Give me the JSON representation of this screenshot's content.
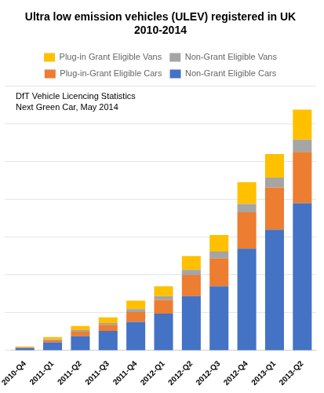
{
  "chart_data": {
    "type": "bar",
    "stacked": true,
    "title": "Ultra low emission vehicles (ULEV) registered in UK 2010-2014",
    "annotation": "DfT Vehicle Licencing Statistics\nNext Green Car, May 2014",
    "categories": [
      "2010-Q4",
      "2011-Q1",
      "2011-Q2",
      "2011-Q3",
      "2011-Q4",
      "2012-Q1",
      "2012-Q2",
      "2012-Q3",
      "2012-Q4",
      "2013-Q1",
      "2013-Q2"
    ],
    "series": [
      {
        "name": "Non-Grant Eligible Cars",
        "color": "#4472C4",
        "values": [
          30,
          110,
          190,
          260,
          380,
          490,
          720,
          850,
          1350,
          1600,
          1950
        ]
      },
      {
        "name": "Plug-in-Grant Eligible Cars",
        "color": "#ED7D31",
        "values": [
          10,
          30,
          60,
          80,
          130,
          180,
          280,
          370,
          480,
          560,
          680
        ]
      },
      {
        "name": "Non-Grant Eligible Vans",
        "color": "#A5A5A5",
        "values": [
          5,
          10,
          20,
          25,
          40,
          50,
          70,
          90,
          110,
          130,
          160
        ]
      },
      {
        "name": "Plug-in Grant Eligible Vans",
        "color": "#FFC000",
        "values": [
          10,
          30,
          55,
          75,
          110,
          130,
          180,
          220,
          290,
          310,
          400
        ]
      }
    ],
    "ylim": [
      0,
      3500
    ],
    "yticks": [
      0,
      500,
      1000,
      1500,
      2000,
      2500,
      3000,
      3500
    ],
    "grid": true,
    "tick_labels": "x",
    "legend": "top"
  }
}
